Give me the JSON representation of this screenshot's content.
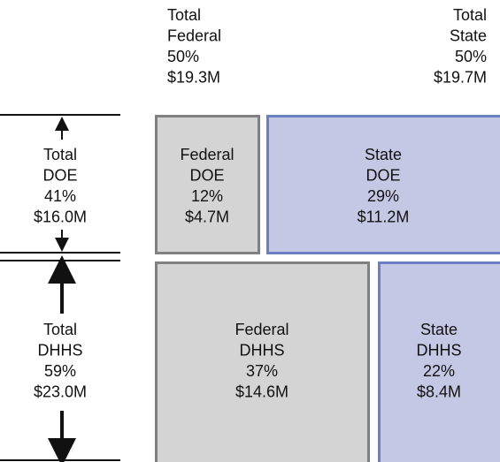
{
  "header": {
    "federal": [
      "Total",
      "Federal",
      "50%",
      "$19.3M"
    ],
    "state": [
      "Total",
      "State",
      "50%",
      "$19.7M"
    ]
  },
  "rows": [
    {
      "total": [
        "Total",
        "DOE",
        "41%",
        "$16.0M"
      ],
      "federal": [
        "Federal",
        "DOE",
        "12%",
        "$4.7M"
      ],
      "state": [
        "State",
        "DOE",
        "29%",
        "$11.2M"
      ]
    },
    {
      "total": [
        "Total",
        "DHHS",
        "59%",
        "$23.0M"
      ],
      "federal": [
        "Federal",
        "DHHS",
        "37%",
        "$14.6M"
      ],
      "state": [
        "State",
        "DHHS",
        "22%",
        "$8.4M"
      ]
    }
  ]
}
